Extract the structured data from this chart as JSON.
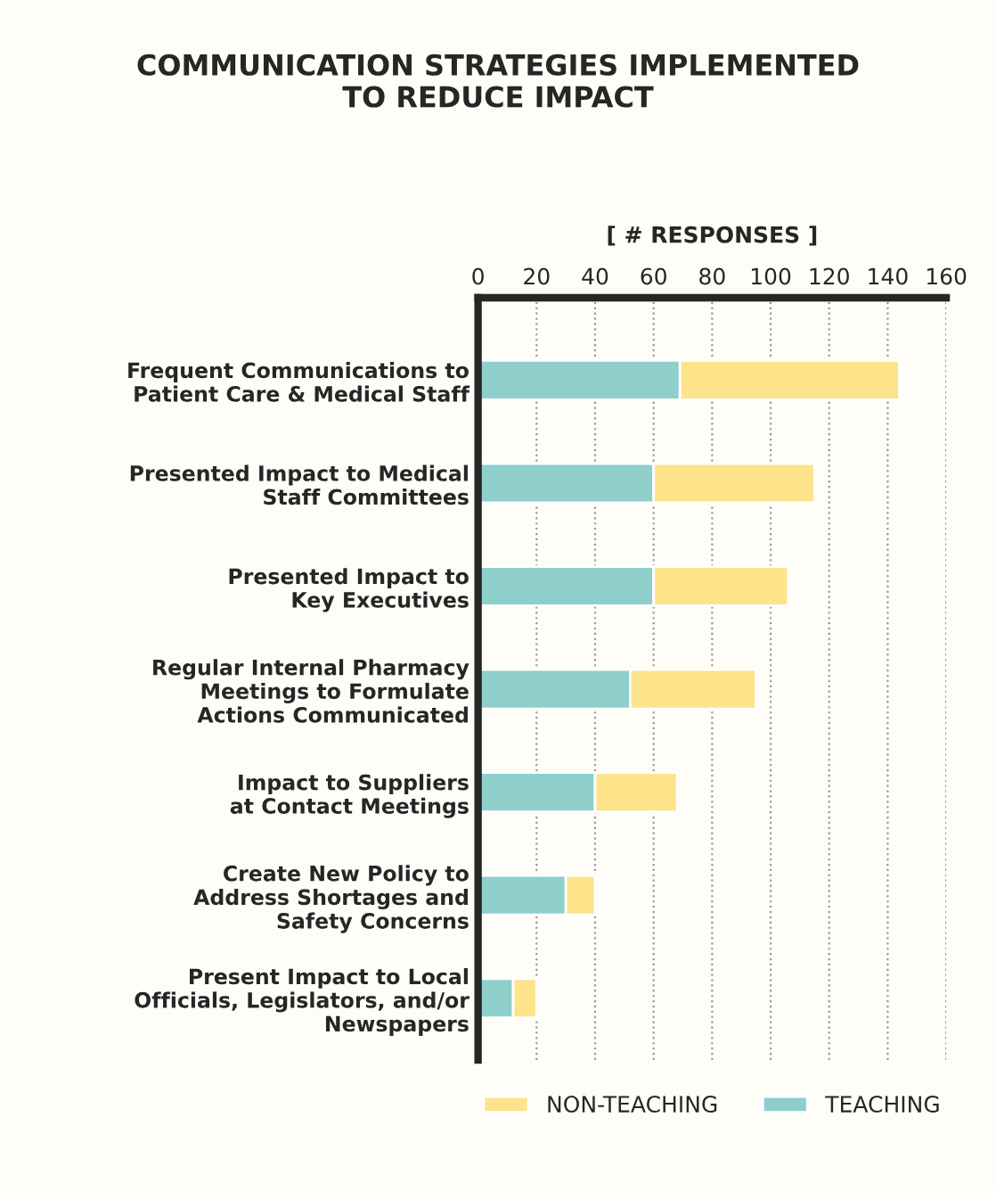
{
  "chart_data": {
    "type": "bar",
    "orientation": "horizontal",
    "stacked": true,
    "title": "COMMUNICATION STRATEGIES IMPLEMENTED\nTO REDUCE IMPACT",
    "xlabel": "[ # RESPONSES ]",
    "categories": [
      "Frequent Communications to\nPatient Care & Medical Staff",
      "Presented Impact to Medical\nStaff Committees",
      "Presented Impact to\nKey Executives",
      "Regular Internal Pharmacy\nMeetings to Formulate\nActions Communicated",
      "Impact to Suppliers\nat Contact Meetings",
      "Create New Policy to\nAddress Shortages and\nSafety Concerns",
      "Present Impact to Local\nOfficials, Legislators, and/or\nNewspapers"
    ],
    "series": [
      {
        "name": "TEACHING",
        "color": "#8ecfcc",
        "values": [
          69,
          60,
          60,
          52,
          40,
          30,
          12
        ]
      },
      {
        "name": "NON-TEACHING",
        "color": "#fde38a",
        "values": [
          75,
          55,
          46,
          43,
          28,
          10,
          8
        ]
      }
    ],
    "xlim": [
      0,
      160
    ],
    "xticks": [
      0,
      20,
      40,
      60,
      80,
      100,
      120,
      140,
      160
    ],
    "grid": "x",
    "legend": "bottom"
  }
}
